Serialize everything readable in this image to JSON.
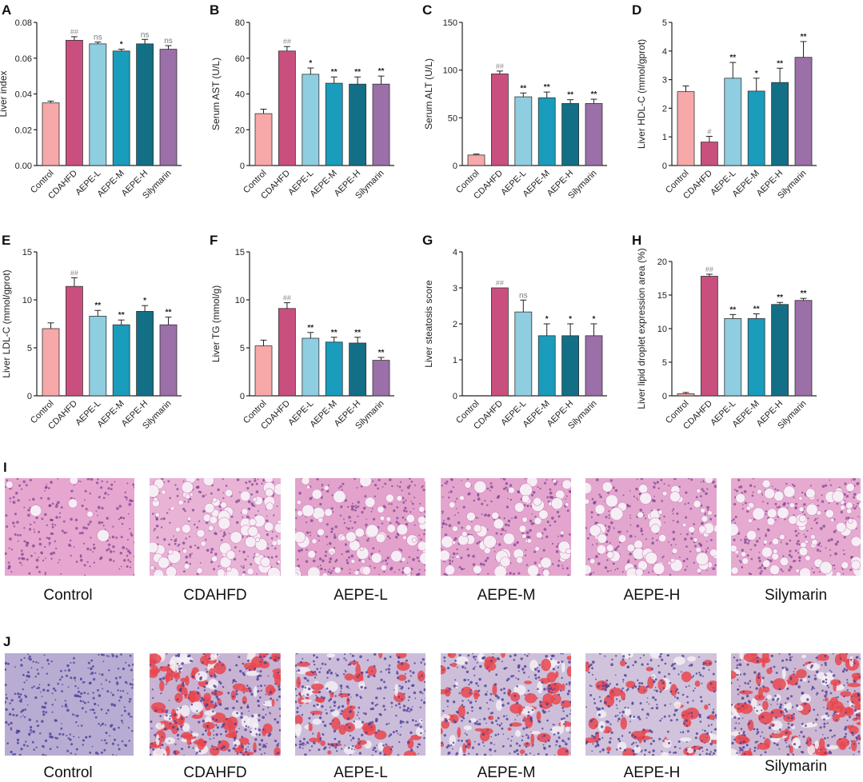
{
  "groups": [
    "Control",
    "CDAHFD",
    "AEPE-L",
    "AEPE-M",
    "AEPE-H",
    "Silymarin"
  ],
  "colors": [
    "#f7a8a8",
    "#c9507e",
    "#8fcde0",
    "#1a9cbc",
    "#136f86",
    "#9b6fa7"
  ],
  "chart_data": [
    {
      "panel": "A",
      "type": "bar",
      "ylabel": "Liver index",
      "ylim": [
        0,
        0.08
      ],
      "yticks": [
        "0.00",
        "0.02",
        "0.04",
        "0.06",
        "0.08"
      ],
      "categories": [
        "Control",
        "CDAHFD",
        "AEPE-L",
        "AEPE-M",
        "AEPE-H",
        "Silymarin"
      ],
      "values": [
        0.035,
        0.07,
        0.068,
        0.064,
        0.068,
        0.065
      ],
      "errors": [
        0.001,
        0.002,
        0.001,
        0.001,
        0.0025,
        0.002
      ],
      "labels": [
        "",
        "##",
        "ns",
        "*",
        "ns",
        "ns"
      ]
    },
    {
      "panel": "B",
      "type": "bar",
      "ylabel": "Serum AST (U/L)",
      "ylim": [
        0,
        80
      ],
      "yticks": [
        "0",
        "20",
        "40",
        "60",
        "80"
      ],
      "categories": [
        "Control",
        "CDAHFD",
        "AEPE-L",
        "AEPE-M",
        "AEPE-H",
        "Silymarin"
      ],
      "values": [
        29,
        64,
        51,
        46,
        45.5,
        45.5
      ],
      "errors": [
        2.5,
        2.5,
        3.5,
        3.5,
        4,
        4.5
      ],
      "labels": [
        "",
        "##",
        "*",
        "**",
        "**",
        "**"
      ]
    },
    {
      "panel": "C",
      "type": "bar",
      "ylabel": "Serum ALT (U/L)",
      "ylim": [
        0,
        150
      ],
      "yticks": [
        "0",
        "50",
        "100",
        "150"
      ],
      "categories": [
        "Control",
        "CDAHFD",
        "AEPE-L",
        "AEPE-M",
        "AEPE-H",
        "Silymarin"
      ],
      "values": [
        11,
        96,
        72,
        71,
        65,
        65
      ],
      "errors": [
        1,
        3,
        4,
        6,
        4,
        4.5
      ],
      "labels": [
        "",
        "##",
        "**",
        "**",
        "**",
        "**"
      ]
    },
    {
      "panel": "D",
      "type": "bar",
      "ylabel": "Liver HDL-C (mmol/gprot)",
      "ylim": [
        0,
        5
      ],
      "yticks": [
        "0",
        "1",
        "2",
        "3",
        "4",
        "5"
      ],
      "categories": [
        "Control",
        "CDAHFD",
        "AEPE-L",
        "AEPE-M",
        "AEPE-H",
        "Silymarin"
      ],
      "values": [
        2.58,
        0.82,
        3.05,
        2.6,
        2.9,
        3.78
      ],
      "errors": [
        0.2,
        0.2,
        0.55,
        0.45,
        0.5,
        0.55
      ],
      "labels": [
        "",
        "#",
        "**",
        "*",
        "**",
        "**"
      ]
    },
    {
      "panel": "E",
      "type": "bar",
      "ylabel": "Liver LDL-C (mmol/gprot)",
      "ylim": [
        0,
        15
      ],
      "yticks": [
        "0",
        "5",
        "10",
        "15"
      ],
      "categories": [
        "Control",
        "CDAHFD",
        "AEPE-L",
        "AEPE-M",
        "AEPE-H",
        "Silymarin"
      ],
      "values": [
        7.0,
        11.4,
        8.3,
        7.4,
        8.8,
        7.4
      ],
      "errors": [
        0.6,
        0.9,
        0.6,
        0.5,
        0.6,
        0.8
      ],
      "labels": [
        "",
        "##",
        "**",
        "**",
        "*",
        "**"
      ]
    },
    {
      "panel": "F",
      "type": "bar",
      "ylabel": "Liver TG (mmol/g)",
      "ylim": [
        0,
        15
      ],
      "yticks": [
        "0",
        "5",
        "10",
        "15"
      ],
      "categories": [
        "Control",
        "CDAHFD",
        "AEPE-L",
        "AEPE-M",
        "AEPE-H",
        "Silymarin"
      ],
      "values": [
        5.2,
        9.1,
        6.0,
        5.6,
        5.5,
        3.7
      ],
      "errors": [
        0.6,
        0.6,
        0.6,
        0.5,
        0.6,
        0.3
      ],
      "labels": [
        "",
        "##",
        "**",
        "**",
        "**",
        "**"
      ]
    },
    {
      "panel": "G",
      "type": "bar",
      "ylabel": "Liver steatosis score",
      "ylim": [
        0,
        4
      ],
      "yticks": [
        "0",
        "1",
        "2",
        "3",
        "4"
      ],
      "categories": [
        "Control",
        "CDAHFD",
        "AEPE-L",
        "AEPE-M",
        "AEPE-H",
        "Silymarin"
      ],
      "values": [
        0,
        3.0,
        2.33,
        1.67,
        1.67,
        1.67
      ],
      "errors": [
        0,
        0,
        0.33,
        0.33,
        0.33,
        0.33
      ],
      "labels": [
        "",
        "##",
        "ns",
        "*",
        "*",
        "*"
      ]
    },
    {
      "panel": "H",
      "type": "bar",
      "ylabel": "Liver lipid droplet expression area (%)",
      "ylim": [
        0,
        20
      ],
      "yticks": [
        "0",
        "5",
        "10",
        "15",
        "20"
      ],
      "categories": [
        "Control",
        "CDAHFD",
        "AEPE-L",
        "AEPE-M",
        "AEPE-H",
        "Silymarin"
      ],
      "values": [
        0.3,
        17.8,
        11.5,
        11.5,
        13.6,
        14.2
      ],
      "errors": [
        0.2,
        0.3,
        0.6,
        0.7,
        0.3,
        0.3
      ],
      "labels": [
        "",
        "##",
        "**",
        "**",
        "**",
        "**"
      ]
    }
  ],
  "panel_I": {
    "letter": "I",
    "captions": [
      "Control",
      "CDAHFD",
      "AEPE-L",
      "AEPE-M",
      "AEPE-H",
      "Silymarin"
    ]
  },
  "panel_J": {
    "letter": "J",
    "captions": [
      "Control",
      "CDAHFD",
      "AEPE-L",
      "AEPE-M",
      "AEPE-H",
      "Silymarin"
    ]
  }
}
